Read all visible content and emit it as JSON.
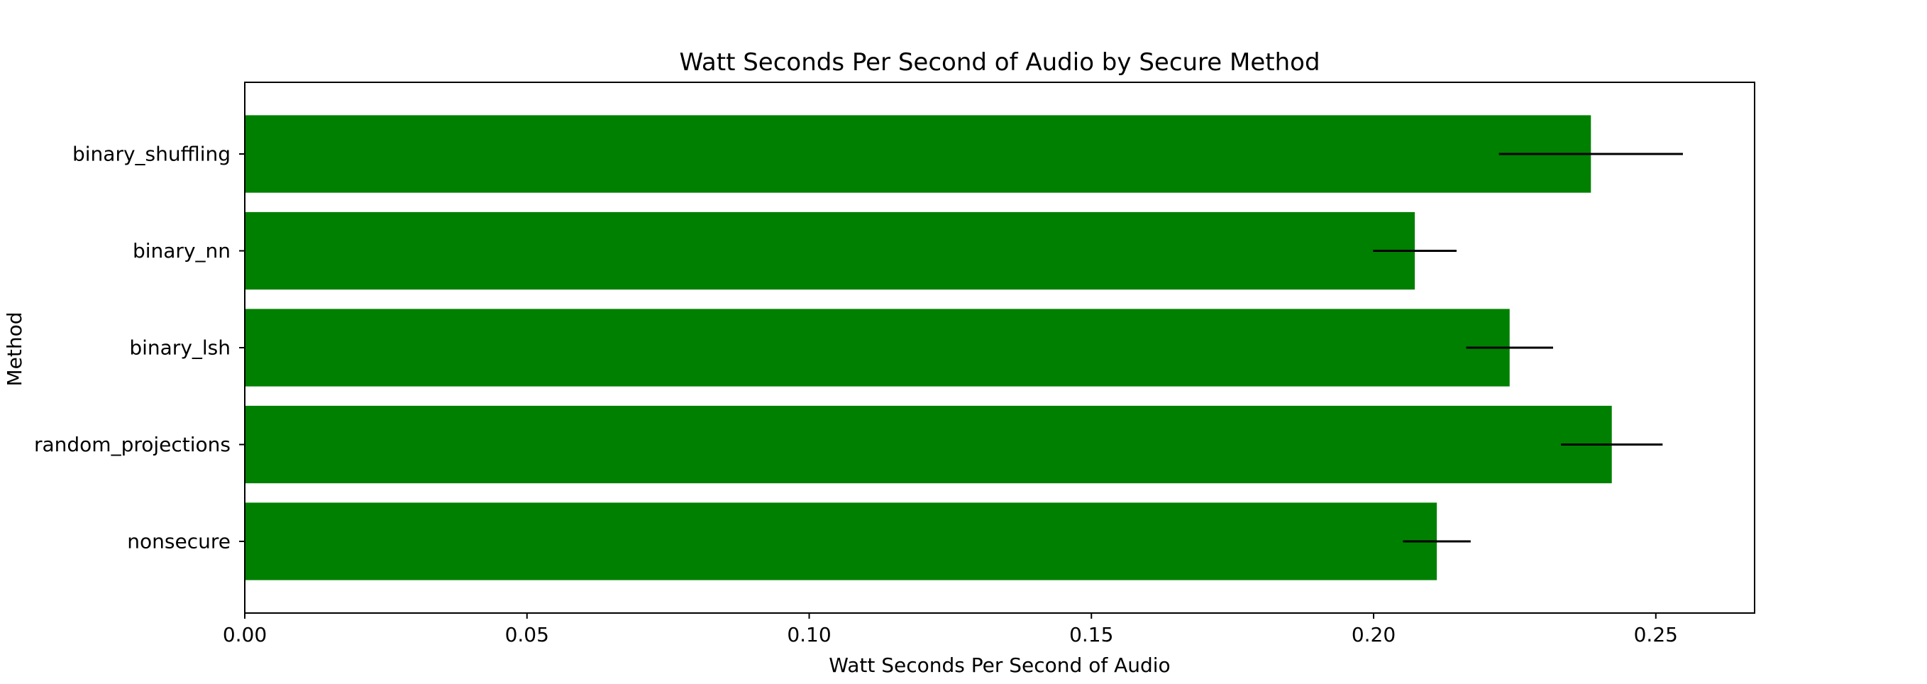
{
  "chart_data": {
    "type": "bar",
    "orientation": "horizontal",
    "title": "Watt Seconds Per Second of Audio by Secure Method",
    "xlabel": "Watt Seconds Per Second of Audio",
    "ylabel": "Method",
    "categories": [
      "nonsecure",
      "random_projections",
      "binary_lsh",
      "binary_nn",
      "binary_shuffling"
    ],
    "values": [
      0.2112,
      0.2422,
      0.2241,
      0.2073,
      0.2385
    ],
    "errors": [
      0.006,
      0.009,
      0.0077,
      0.0074,
      0.0163
    ],
    "xlim": [
      0,
      0.2675
    ],
    "xticks": [
      0.0,
      0.05,
      0.1,
      0.15,
      0.2,
      0.25
    ],
    "xtick_labels": [
      "0.00",
      "0.05",
      "0.10",
      "0.15",
      "0.20",
      "0.25"
    ],
    "grid": false,
    "legend": "none",
    "colors": {
      "bar": "#008000",
      "error_bar": "#000000",
      "axis": "#000000"
    }
  }
}
